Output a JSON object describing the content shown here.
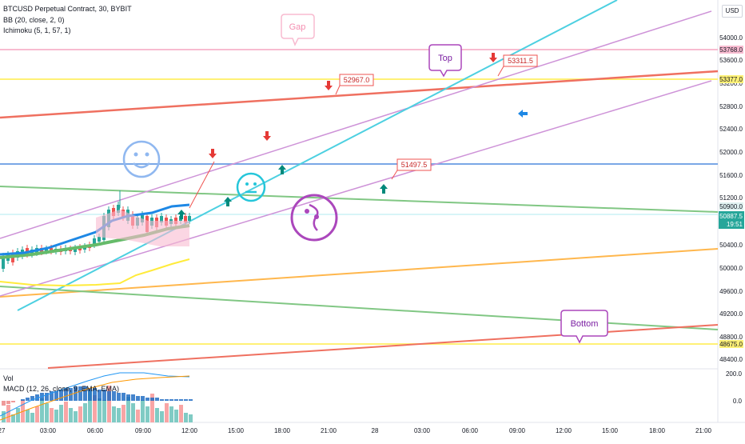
{
  "header": {
    "symbol_line": "BTCUSD Perpetual Contract, 30, BYBIT",
    "bb_line": "BB (20, close, 2, 0)",
    "ichimoku_line": "Ichimoku (5, 1, 57, 1)",
    "vol_label": "Vol",
    "macd_line": "MACD (12, 26, close, 9, EMA, EMA)"
  },
  "currency": "USD",
  "price_axis": {
    "ticks": [
      "54000.0",
      "53600.0",
      "53200.0",
      "52800.0",
      "52400.0",
      "52000.0",
      "51600.0",
      "51200.0",
      "50400.0",
      "50000.0",
      "49600.0",
      "49200.0",
      "48800.0",
      "48400.0"
    ],
    "highlighted": [
      {
        "label": "53768.0",
        "color": "#f8bbd0"
      },
      {
        "label": "53377.0",
        "color": "#fff176"
      },
      {
        "label": "50900.0",
        "color": "#e0f2f1"
      },
      {
        "label": "48675.0",
        "color": "#fff176"
      }
    ],
    "current": {
      "price": "50887.5",
      "countdown": "19:51",
      "color": "#26a69a"
    }
  },
  "macd_axis": {
    "ticks": [
      "200.0",
      "0.0"
    ]
  },
  "time_axis": [
    "27",
    "03:00",
    "06:00",
    "09:00",
    "12:00",
    "15:00",
    "18:00",
    "21:00",
    "28",
    "03:00",
    "06:00",
    "09:00",
    "12:00",
    "15:00",
    "18:00",
    "21:00"
  ],
  "annotations": {
    "gap": "Gap",
    "top": "Top",
    "bottom": "Bottom",
    "price_labels": [
      "52967.0",
      "53311.5",
      "51497.5"
    ]
  },
  "colors": {
    "teal": "#26a69a",
    "red": "#ef5350",
    "pink": "#f8bbd0",
    "yellow": "#fff176",
    "blue_line": "#7aa7e6",
    "green_line": "#81c784",
    "orange_line": "#ffb74d",
    "purple": "#ab47bc",
    "cyan": "#26c6da",
    "lavender": "#ce93d8"
  },
  "icons": {
    "happy": "smile-face-icon",
    "neutral": "neutral-face-icon",
    "confused": "confused-face-icon",
    "pointer": "blue-arrow-icon"
  }
}
